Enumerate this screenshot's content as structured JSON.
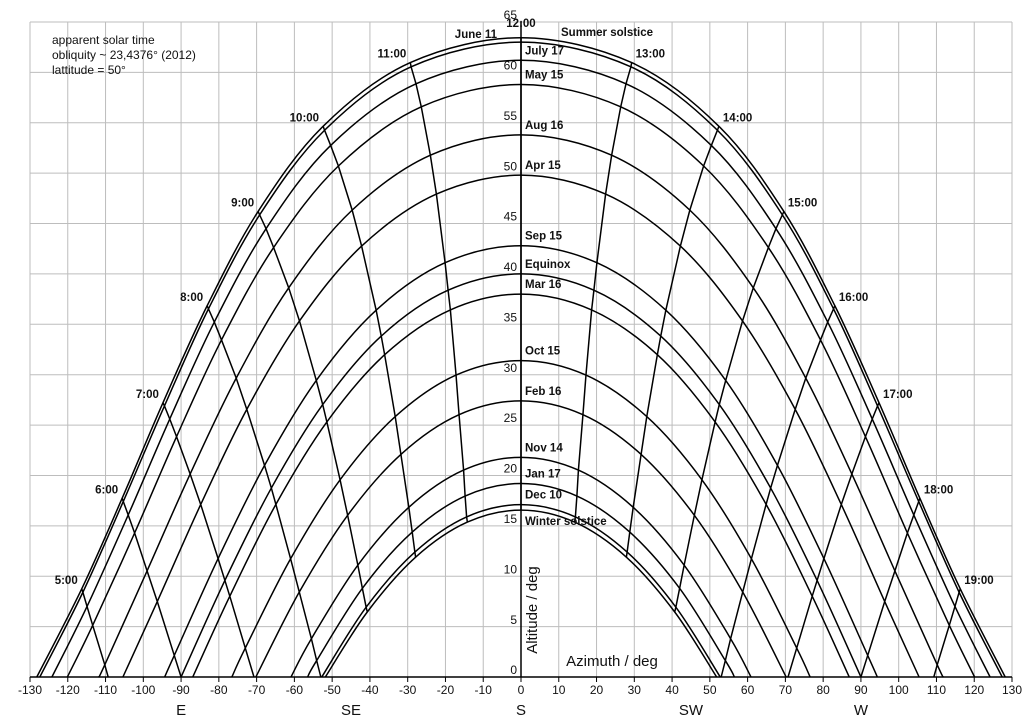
{
  "chart_data": {
    "type": "line",
    "notes": [
      "apparent solar time",
      "obliquity ~ 23,4376° (2012)",
      "lattitude = 50°"
    ],
    "xlabel": "Azimuth / deg",
    "ylabel": "Altitude / deg",
    "xlim": [
      -130,
      130
    ],
    "ylim": [
      0,
      65
    ],
    "xticks": [
      -130,
      -120,
      -110,
      -100,
      -90,
      -80,
      -70,
      -60,
      -50,
      -40,
      -30,
      -20,
      -10,
      0,
      10,
      20,
      30,
      40,
      50,
      60,
      70,
      80,
      90,
      100,
      110,
      120,
      130
    ],
    "yticks": [
      0,
      5,
      10,
      15,
      20,
      25,
      30,
      35,
      40,
      45,
      50,
      55,
      60,
      65
    ],
    "compass": [
      {
        "value": -90,
        "label": "E"
      },
      {
        "value": -45,
        "label": "SE"
      },
      {
        "value": 0,
        "label": "S"
      },
      {
        "value": 45,
        "label": "SW"
      },
      {
        "value": 90,
        "label": "W"
      }
    ],
    "grid": true,
    "line_color": "#000000",
    "series": [
      {
        "name": "Summer solstice",
        "x": [
          -128.2,
          -116.3,
          -105.6,
          -94.8,
          -83.1,
          -69.6,
          -52.4,
          -29.3,
          0,
          29.3,
          52.4,
          69.6,
          83.1,
          94.8,
          105.6,
          116.3,
          128.2
        ],
        "y": [
          0,
          8.75,
          17.74,
          27.21,
          36.84,
          46.2,
          54.65,
          60.97,
          63.44,
          60.97,
          54.65,
          46.2,
          36.84,
          27.21,
          17.74,
          8.75,
          0
        ]
      },
      {
        "name": "June 11",
        "x": [
          -127.4,
          -116.0,
          -105.3,
          -94.4,
          -82.75,
          -69.2,
          -52.0,
          -29.1,
          0,
          29.1,
          52.0,
          69.2,
          82.75,
          94.4,
          105.3,
          116.0,
          127.4
        ],
        "y": [
          0,
          8.41,
          17.42,
          26.9,
          36.53,
          45.86,
          54.26,
          60.55,
          63.0,
          60.55,
          54.26,
          45.86,
          36.53,
          26.9,
          17.42,
          8.41,
          0
        ]
      },
      {
        "name": "July 17",
        "x": [
          -124.2,
          -114.9,
          -104.0,
          -93.0,
          -81.2,
          -67.5,
          -50.4,
          -27.8,
          0,
          27.8,
          50.4,
          67.5,
          81.2,
          93.0,
          104.0,
          114.9,
          124.2
        ],
        "y": [
          0,
          7.0,
          16.08,
          25.6,
          35.22,
          44.49,
          52.75,
          58.87,
          61.2,
          58.87,
          52.75,
          44.49,
          35.22,
          25.6,
          16.08,
          7.0,
          0
        ]
      },
      {
        "name": "May 15",
        "x": [
          -120.1,
          -113.4,
          -102.3,
          -91.2,
          -79.3,
          -65.5,
          -48.35,
          -26.4,
          0,
          26.4,
          48.35,
          65.5,
          79.3,
          91.2,
          102.3,
          113.4,
          120.1
        ],
        "y": [
          0,
          5.13,
          14.29,
          23.85,
          33.45,
          42.62,
          50.71,
          56.58,
          58.8,
          56.58,
          50.71,
          42.62,
          33.45,
          23.85,
          14.29,
          5.13,
          0
        ]
      },
      {
        "name": "Aug 16",
        "x": [
          -111.8,
          -110.2,
          -99.0,
          -87.6,
          -75.4,
          -61.5,
          -44.7,
          -24.0,
          0,
          24.0,
          44.7,
          61.5,
          75.4,
          87.6,
          99.0,
          110.2,
          111.8
        ],
        "y": [
          0,
          1.21,
          10.53,
          20.14,
          29.66,
          38.62,
          46.33,
          51.78,
          53.8,
          51.78,
          46.33,
          38.62,
          29.66,
          20.14,
          10.53,
          1.21,
          0
        ]
      },
      {
        "name": "Apr 15",
        "x": [
          -105.4,
          -96.3,
          -84.8,
          -72.6,
          -58.65,
          -42.2,
          -22.4,
          0,
          22.4,
          42.2,
          58.65,
          72.6,
          84.8,
          96.3,
          105.4
        ],
        "y": [
          0,
          7.49,
          17.12,
          26.56,
          35.33,
          42.76,
          47.92,
          49.8,
          47.92,
          42.76,
          35.33,
          26.56,
          17.12,
          7.49,
          0
        ]
      },
      {
        "name": "Sep 15",
        "x": [
          -94.35,
          -91.8,
          -80.2,
          -67.9,
          -54.2,
          -38.35,
          -20.1,
          0,
          20.1,
          38.35,
          54.2,
          67.9,
          80.2,
          91.8,
          94.35
        ],
        "y": [
          0,
          2.14,
          11.75,
          21.0,
          29.43,
          36.4,
          41.11,
          42.8,
          41.11,
          36.4,
          29.43,
          21.0,
          11.75,
          2.14,
          0
        ]
      },
      {
        "name": "Equinox",
        "x": [
          -90,
          -78.4,
          -66.1,
          -52.5,
          -37.0,
          -19.3,
          0,
          19.3,
          37.0,
          52.5,
          66.1,
          78.4,
          90
        ],
        "y": [
          0,
          9.58,
          18.75,
          27.03,
          33.83,
          38.38,
          40,
          38.38,
          33.83,
          27.03,
          18.75,
          9.58,
          0
        ]
      },
      {
        "name": "Mar 16",
        "x": [
          -86.9,
          -77.1,
          -64.9,
          -51.4,
          -36.1,
          -18.7,
          0,
          18.7,
          36.1,
          51.4,
          64.9,
          77.1,
          86.9
        ],
        "y": [
          0,
          8.02,
          17.13,
          25.31,
          31.98,
          36.43,
          38.0,
          36.43,
          31.98,
          25.31,
          17.13,
          8.02,
          0
        ]
      },
      {
        "name": "Oct 15",
        "x": [
          -76.55,
          -73.0,
          -61.0,
          -47.9,
          -33.3,
          -17.2,
          0,
          17.2,
          33.3,
          47.9,
          61.0,
          73.0,
          76.55
        ],
        "y": [
          0,
          2.87,
          11.73,
          19.57,
          25.84,
          29.96,
          31.4,
          29.96,
          25.84,
          19.57,
          11.73,
          2.87,
          0
        ]
      },
      {
        "name": "Feb 16",
        "x": [
          -70.2,
          -58.7,
          -45.9,
          -31.8,
          -16.4,
          0,
          16.4,
          31.8,
          45.9,
          58.7,
          70.2
        ],
        "y": [
          0,
          8.43,
          16.05,
          22.09,
          26.03,
          27.4,
          26.03,
          22.09,
          16.05,
          8.43,
          0
        ]
      },
      {
        "name": "Nov 14",
        "x": [
          -60.9,
          -55.5,
          -43.2,
          -29.7,
          -15.2,
          0,
          15.2,
          29.7,
          43.2,
          55.5,
          60.9
        ],
        "y": [
          0,
          3.8,
          11.1,
          16.84,
          20.53,
          21.8,
          20.53,
          16.84,
          11.1,
          3.8,
          0
        ]
      },
      {
        "name": "Jan 17",
        "x": [
          -56.5,
          -54.1,
          -42.0,
          -28.8,
          -14.8,
          0,
          14.8,
          28.8,
          42.0,
          54.1,
          56.5
        ],
        "y": [
          0,
          1.63,
          8.8,
          14.38,
          17.96,
          19.2,
          17.96,
          14.38,
          8.8,
          1.63,
          0
        ]
      },
      {
        "name": "Dec 10",
        "x": [
          -52.75,
          -41.0,
          -28.1,
          -14.4,
          0,
          14.4,
          28.1,
          41.0,
          52.75
        ],
        "y": [
          0,
          6.93,
          12.4,
          15.89,
          17.1,
          15.89,
          12.4,
          6.93,
          0
        ]
      },
      {
        "name": "Winter solstice",
        "x": [
          -51.8,
          -40.7,
          -27.9,
          -14.2,
          0,
          14.2,
          27.9,
          40.7,
          51.8
        ],
        "y": [
          0,
          6.45,
          11.89,
          15.37,
          16.56,
          15.37,
          11.89,
          6.45,
          0
        ]
      }
    ],
    "hour_lines": [
      {
        "name": "5:00",
        "x": [
          -116.3,
          -116.0,
          -114.9,
          -113.4,
          -110.2,
          -109.3
        ],
        "y": [
          8.75,
          8.41,
          7.0,
          5.13,
          1.21,
          0
        ]
      },
      {
        "name": "6:00",
        "x": [
          -105.6,
          -105.3,
          -104.0,
          -102.3,
          -99.0,
          -96.3,
          -91.8,
          -90
        ],
        "y": [
          17.74,
          17.42,
          16.08,
          14.29,
          10.53,
          7.49,
          2.14,
          0
        ]
      },
      {
        "name": "7:00",
        "x": [
          -94.8,
          -94.4,
          -93.0,
          -91.2,
          -87.6,
          -84.8,
          -80.2,
          -78.4,
          -77.1,
          -73.0,
          -70.7
        ],
        "y": [
          27.21,
          26.9,
          25.6,
          23.85,
          20.14,
          17.12,
          11.75,
          9.58,
          8.02,
          2.87,
          0
        ]
      },
      {
        "name": "8:00",
        "x": [
          -83.1,
          -82.75,
          -81.2,
          -79.3,
          -75.4,
          -72.6,
          -67.9,
          -66.1,
          -64.9,
          -61.0,
          -58.7,
          -55.5,
          -54.1,
          -53.0
        ],
        "y": [
          36.84,
          36.53,
          35.22,
          33.45,
          29.66,
          26.56,
          21.0,
          18.75,
          17.13,
          11.73,
          8.43,
          3.8,
          1.63,
          0
        ]
      },
      {
        "name": "9:00",
        "x": [
          -69.6,
          -69.2,
          -67.5,
          -65.5,
          -61.5,
          -58.65,
          -54.2,
          -52.5,
          -51.4,
          -47.9,
          -45.9,
          -43.2,
          -42.0,
          -41.0,
          -40.7
        ],
        "y": [
          46.2,
          45.86,
          44.49,
          42.62,
          38.62,
          35.33,
          29.43,
          27.03,
          25.31,
          19.57,
          16.05,
          11.1,
          8.8,
          6.93,
          6.45
        ]
      },
      {
        "name": "10:00",
        "x": [
          -52.4,
          -52.0,
          -50.4,
          -48.35,
          -44.7,
          -42.2,
          -38.35,
          -37.0,
          -36.1,
          -33.3,
          -31.8,
          -29.7,
          -28.8,
          -28.1,
          -27.9
        ],
        "y": [
          54.65,
          54.26,
          52.75,
          50.71,
          46.33,
          42.76,
          36.4,
          33.83,
          31.98,
          25.84,
          22.09,
          16.84,
          14.38,
          12.4,
          11.89
        ]
      },
      {
        "name": "11:00",
        "x": [
          -29.3,
          -29.1,
          -27.8,
          -26.4,
          -24.0,
          -22.4,
          -20.1,
          -19.3,
          -18.7,
          -17.2,
          -16.4,
          -15.2,
          -14.8,
          -14.4,
          -14.2
        ],
        "y": [
          60.97,
          60.55,
          58.87,
          56.58,
          51.78,
          47.92,
          41.11,
          38.38,
          36.43,
          29.96,
          26.03,
          20.53,
          17.96,
          15.89,
          15.37
        ]
      },
      {
        "name": "12:00",
        "x": [
          0,
          0
        ],
        "y": [
          63.44,
          16.56
        ]
      },
      {
        "name": "13:00",
        "x": [
          29.3,
          29.1,
          27.8,
          26.4,
          24.0,
          22.4,
          20.1,
          19.3,
          18.7,
          17.2,
          16.4,
          15.2,
          14.8,
          14.4,
          14.2
        ],
        "y": [
          60.97,
          60.55,
          58.87,
          56.58,
          51.78,
          47.92,
          41.11,
          38.38,
          36.43,
          29.96,
          26.03,
          20.53,
          17.96,
          15.89,
          15.37
        ]
      },
      {
        "name": "14:00",
        "x": [
          52.4,
          52.0,
          50.4,
          48.35,
          44.7,
          42.2,
          38.35,
          37.0,
          36.1,
          33.3,
          31.8,
          29.7,
          28.8,
          28.1,
          27.9
        ],
        "y": [
          54.65,
          54.26,
          52.75,
          50.71,
          46.33,
          42.76,
          36.4,
          33.83,
          31.98,
          25.84,
          22.09,
          16.84,
          14.38,
          12.4,
          11.89
        ]
      },
      {
        "name": "15:00",
        "x": [
          69.6,
          69.2,
          67.5,
          65.5,
          61.5,
          58.65,
          54.2,
          52.5,
          51.4,
          47.9,
          45.9,
          43.2,
          42.0,
          41.0,
          40.7
        ],
        "y": [
          46.2,
          45.86,
          44.49,
          42.62,
          38.62,
          35.33,
          29.43,
          27.03,
          25.31,
          19.57,
          16.05,
          11.1,
          8.8,
          6.93,
          6.45
        ]
      },
      {
        "name": "16:00",
        "x": [
          83.1,
          82.75,
          81.2,
          79.3,
          75.4,
          72.6,
          67.9,
          66.1,
          64.9,
          61.0,
          58.7,
          55.5,
          54.1,
          53.0
        ],
        "y": [
          36.84,
          36.53,
          35.22,
          33.45,
          29.66,
          26.56,
          21.0,
          18.75,
          17.13,
          11.73,
          8.43,
          3.8,
          1.63,
          0
        ]
      },
      {
        "name": "17:00",
        "x": [
          94.8,
          94.4,
          93.0,
          91.2,
          87.6,
          84.8,
          80.2,
          78.4,
          77.1,
          73.0,
          70.7
        ],
        "y": [
          27.21,
          26.9,
          25.6,
          23.85,
          20.14,
          17.12,
          11.75,
          9.58,
          8.02,
          2.87,
          0
        ]
      },
      {
        "name": "18:00",
        "x": [
          105.6,
          105.3,
          104.0,
          102.3,
          99.0,
          96.3,
          91.8,
          90
        ],
        "y": [
          17.74,
          17.42,
          16.08,
          14.29,
          10.53,
          7.49,
          2.14,
          0
        ]
      },
      {
        "name": "19:00",
        "x": [
          116.3,
          116.0,
          114.9,
          113.4,
          110.2,
          109.3
        ],
        "y": [
          8.75,
          8.41,
          7.0,
          5.13,
          1.21,
          0
        ]
      }
    ]
  }
}
